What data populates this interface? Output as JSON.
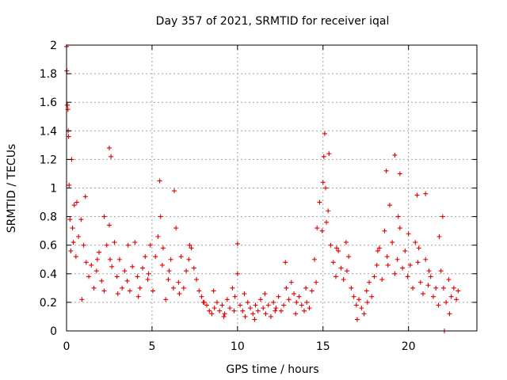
{
  "chart_data": {
    "type": "scatter",
    "title": "Day 357 of 2021, SRMTID for receiver iqal",
    "xlabel": "GPS time / hours",
    "ylabel": "SRMTID / TECUs",
    "xlim": [
      0,
      24
    ],
    "ylim": [
      0,
      2
    ],
    "xticks": [
      0,
      5,
      10,
      15,
      20
    ],
    "xtick_labels": [
      "0",
      "5",
      "10",
      "15",
      "20"
    ],
    "yticks": [
      0,
      0.2,
      0.4,
      0.6,
      0.8,
      1,
      1.2,
      1.4,
      1.6,
      1.8,
      2
    ],
    "ytick_labels": [
      "0",
      "0.2",
      "0.4",
      "0.6",
      "0.8",
      "1",
      "1.2",
      "1.4",
      "1.6",
      "1.8",
      "2"
    ],
    "grid": true,
    "marker": "+",
    "color": "#e00000",
    "series": [
      {
        "name": "SRMTID",
        "x": [
          0.0,
          0.05,
          0.1,
          0.15,
          0.2,
          0.25,
          0.35,
          0.45,
          0.55,
          0.7,
          0.85,
          1.0,
          1.15,
          1.3,
          1.45,
          1.6,
          1.75,
          1.9,
          2.05,
          2.2,
          2.35,
          2.5,
          2.55,
          2.65,
          2.8,
          2.95,
          3.1,
          3.25,
          3.4,
          3.55,
          3.7,
          3.85,
          4.0,
          4.15,
          4.3,
          4.45,
          4.6,
          4.75,
          4.9,
          5.05,
          5.2,
          5.35,
          5.5,
          5.65,
          5.8,
          5.95,
          6.1,
          6.25,
          6.4,
          6.55,
          6.7,
          6.85,
          7.0,
          7.15,
          7.3,
          7.45,
          7.6,
          7.75,
          7.9,
          8.05,
          8.2,
          8.35,
          8.5,
          8.65,
          8.8,
          8.95,
          9.1,
          9.25,
          9.4,
          9.55,
          9.7,
          9.85,
          10.0,
          10.15,
          10.3,
          10.45,
          10.6,
          10.75,
          10.9,
          11.05,
          11.2,
          11.35,
          11.5,
          11.65,
          11.8,
          11.95,
          12.1,
          12.25,
          12.4,
          12.55,
          12.7,
          12.85,
          13.0,
          13.15,
          13.3,
          13.45,
          13.6,
          13.75,
          13.9,
          14.05,
          14.2,
          14.35,
          14.5,
          14.65,
          14.8,
          14.95,
          15.05,
          15.15,
          15.3,
          15.45,
          15.6,
          15.75,
          15.9,
          16.05,
          16.2,
          16.35,
          16.5,
          16.65,
          16.8,
          16.95,
          17.1,
          17.25,
          17.4,
          17.55,
          17.7,
          17.85,
          18.0,
          18.15,
          18.3,
          18.45,
          18.6,
          18.75,
          18.9,
          19.05,
          19.2,
          19.35,
          19.5,
          19.65,
          19.8,
          19.95,
          20.1,
          20.25,
          20.4,
          20.55,
          20.7,
          20.85,
          21.0,
          21.15,
          21.3,
          21.45,
          21.6,
          21.75,
          21.9,
          22.05,
          22.2,
          22.35,
          22.5,
          22.65,
          22.8,
          0.02,
          0.08,
          0.12,
          0.3,
          0.6,
          1.1,
          2.5,
          2.6,
          5.45,
          6.3,
          10.0,
          15.0,
          15.1,
          15.35,
          18.7,
          19.2,
          19.5,
          20.5,
          21.0,
          22.0,
          0.4,
          0.9,
          1.8,
          2.2,
          3.0,
          3.6,
          4.2,
          4.8,
          5.6,
          6.0,
          6.6,
          7.2,
          8.0,
          8.6,
          9.2,
          9.8,
          10.4,
          11.0,
          11.6,
          12.2,
          12.8,
          13.4,
          14.0,
          14.6,
          15.2,
          15.8,
          16.4,
          17.0,
          17.6,
          18.2,
          18.8,
          19.4,
          20.0,
          20.6,
          21.2,
          21.8,
          22.4,
          22.9
        ],
        "y": [
          1.99,
          1.58,
          1.4,
          1.02,
          0.78,
          0.56,
          0.72,
          0.88,
          0.52,
          0.66,
          0.78,
          0.6,
          0.48,
          0.38,
          0.46,
          0.3,
          0.42,
          0.55,
          0.35,
          0.28,
          0.6,
          0.74,
          0.5,
          0.45,
          0.62,
          0.38,
          0.5,
          0.3,
          0.42,
          0.35,
          0.28,
          0.45,
          0.62,
          0.38,
          0.3,
          0.44,
          0.52,
          0.36,
          0.6,
          0.28,
          0.52,
          0.66,
          0.8,
          0.58,
          0.22,
          0.36,
          0.5,
          0.3,
          0.72,
          0.34,
          0.52,
          0.3,
          0.42,
          0.5,
          0.58,
          0.44,
          0.36,
          0.28,
          0.24,
          0.2,
          0.18,
          0.14,
          0.12,
          0.16,
          0.2,
          0.14,
          0.18,
          0.12,
          0.22,
          0.16,
          0.3,
          0.24,
          0.4,
          0.18,
          0.14,
          0.1,
          0.2,
          0.16,
          0.12,
          0.18,
          0.14,
          0.22,
          0.16,
          0.12,
          0.18,
          0.1,
          0.2,
          0.16,
          0.24,
          0.14,
          0.18,
          0.3,
          0.22,
          0.34,
          0.26,
          0.2,
          0.24,
          0.18,
          0.14,
          0.2,
          0.16,
          0.28,
          0.5,
          0.72,
          0.9,
          0.7,
          1.22,
          1.0,
          0.84,
          0.6,
          0.48,
          0.38,
          0.56,
          0.44,
          0.36,
          0.62,
          0.52,
          0.3,
          0.24,
          0.18,
          0.22,
          0.16,
          0.12,
          0.28,
          0.34,
          0.24,
          0.38,
          0.46,
          0.58,
          0.36,
          0.7,
          0.52,
          0.88,
          0.62,
          0.4,
          0.5,
          0.72,
          0.44,
          0.56,
          0.38,
          0.46,
          0.3,
          0.62,
          0.48,
          0.34,
          0.26,
          0.5,
          0.32,
          0.38,
          0.24,
          0.3,
          0.18,
          0.42,
          0.3,
          0.2,
          0.36,
          0.24,
          0.3,
          0.22,
          1.82,
          1.55,
          1.36,
          1.2,
          0.9,
          0.94,
          1.28,
          1.22,
          1.05,
          0.98,
          0.61,
          1.04,
          1.38,
          1.24,
          1.12,
          1.23,
          1.1,
          0.95,
          0.96,
          0.8,
          0.62,
          0.22,
          0.5,
          0.8,
          0.26,
          0.6,
          0.24,
          0.4,
          0.46,
          0.42,
          0.26,
          0.6,
          0.2,
          0.28,
          0.1,
          0.14,
          0.26,
          0.08,
          0.26,
          0.14,
          0.48,
          0.12,
          0.3,
          0.34,
          0.76,
          0.58,
          0.42,
          0.08,
          0.2,
          0.56,
          0.46,
          0.8,
          0.68,
          0.58,
          0.42,
          0.66,
          0.12,
          0.28
        ]
      },
      {
        "name": "marker",
        "x": [
          22.1
        ],
        "y": [
          0.0
        ]
      }
    ]
  }
}
